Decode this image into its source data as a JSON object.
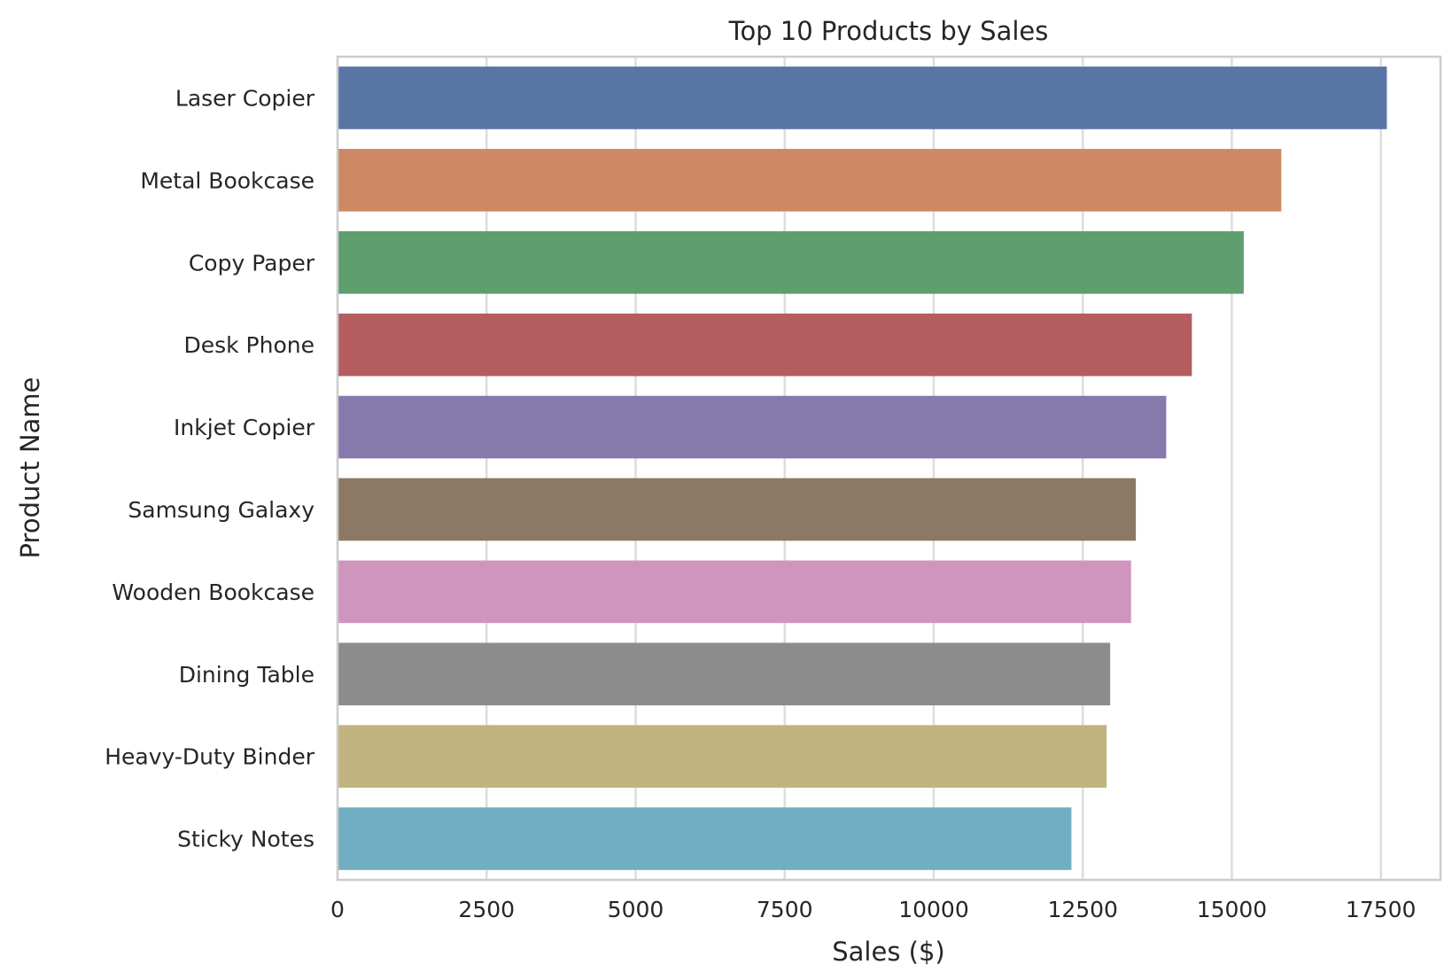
{
  "chart_data": {
    "type": "bar",
    "orientation": "horizontal",
    "title": "Top 10 Products by Sales",
    "xlabel": "Sales ($)",
    "ylabel": "Product Name",
    "categories": [
      "Laser Copier",
      "Metal Bookcase",
      "Copy Paper",
      "Desk Phone",
      "Inkjet Copier",
      "Samsung Galaxy",
      "Wooden Bookcase",
      "Dining Table",
      "Heavy-Duty Binder",
      "Sticky Notes"
    ],
    "values": [
      17600,
      15830,
      15200,
      14330,
      13900,
      13390,
      13310,
      12960,
      12900,
      12310
    ],
    "xlim": [
      0,
      18500
    ],
    "xticks": [
      0,
      2500,
      5000,
      7500,
      10000,
      12500,
      15000,
      17500
    ],
    "xtick_labels": [
      "0",
      "2500",
      "5000",
      "7500",
      "10000",
      "12500",
      "15000",
      "17500"
    ],
    "colors": [
      "#5975a4",
      "#cc8963",
      "#5f9e6e",
      "#b55d60",
      "#857aab",
      "#8d7866",
      "#d095bf",
      "#8c8c8c",
      "#c1b37f",
      "#72aec1"
    ],
    "grid": true,
    "grid_axis": "x"
  }
}
